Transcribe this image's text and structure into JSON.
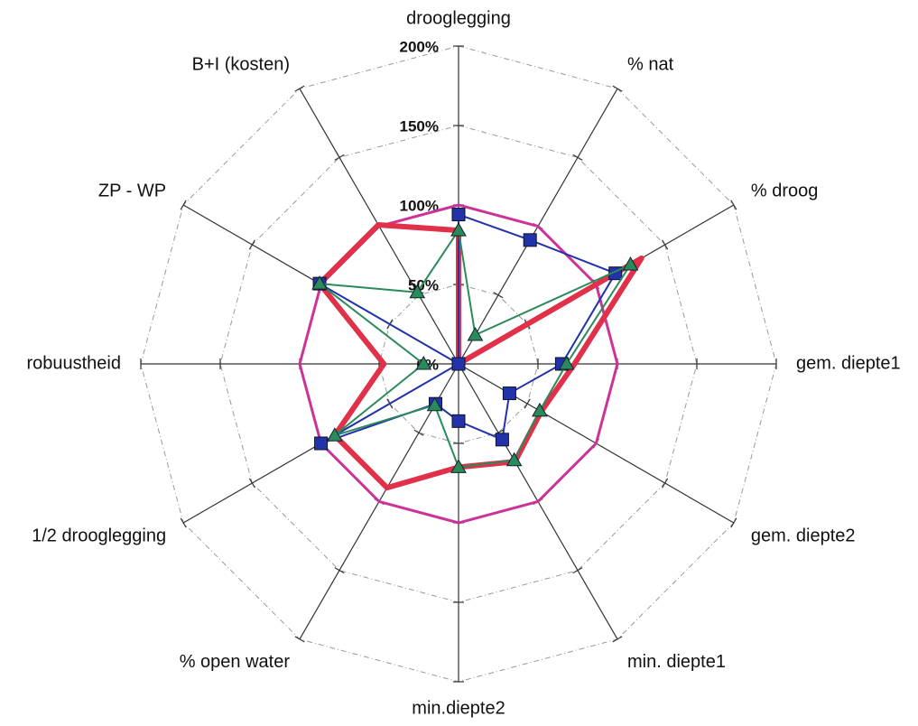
{
  "chart_data": {
    "type": "radar",
    "categories": [
      "drooglegging",
      "% nat",
      "% droog",
      "gem. diepte1",
      "gem. diepte2",
      "min. diepte1",
      "min.diepte2",
      "% open water",
      "1/2 drooglegging",
      "robuustheid",
      "ZP - WP",
      "B+I (kosten)"
    ],
    "ylim": [
      0,
      200
    ],
    "yticks": [
      {
        "value": 0,
        "label": "0%"
      },
      {
        "value": 50,
        "label": "50%"
      },
      {
        "value": 100,
        "label": "100%"
      },
      {
        "value": 150,
        "label": "150%"
      },
      {
        "value": 200,
        "label": "200%"
      }
    ],
    "grid": true,
    "series": [
      {
        "color": "#cc3399",
        "width": 3,
        "marker": "none",
        "values": [
          100,
          100,
          100,
          100,
          100,
          100,
          100,
          100,
          100,
          100,
          100,
          100
        ]
      },
      {
        "color": "#e0304a",
        "width": 6,
        "marker": "none",
        "values": [
          84,
          0,
          133,
          73,
          60,
          71,
          65,
          90,
          90,
          47,
          101,
          101
        ]
      },
      {
        "color": "#2233aa",
        "width": 2,
        "marker": "square",
        "values": [
          94,
          90,
          114,
          65,
          37,
          55,
          36,
          29,
          100,
          0,
          101,
          0
        ]
      },
      {
        "color": "#2a8a5a",
        "width": 2,
        "marker": "triangle",
        "values": [
          84,
          21,
          125,
          68,
          59,
          70,
          65,
          30,
          90,
          22,
          101,
          52
        ]
      }
    ]
  }
}
